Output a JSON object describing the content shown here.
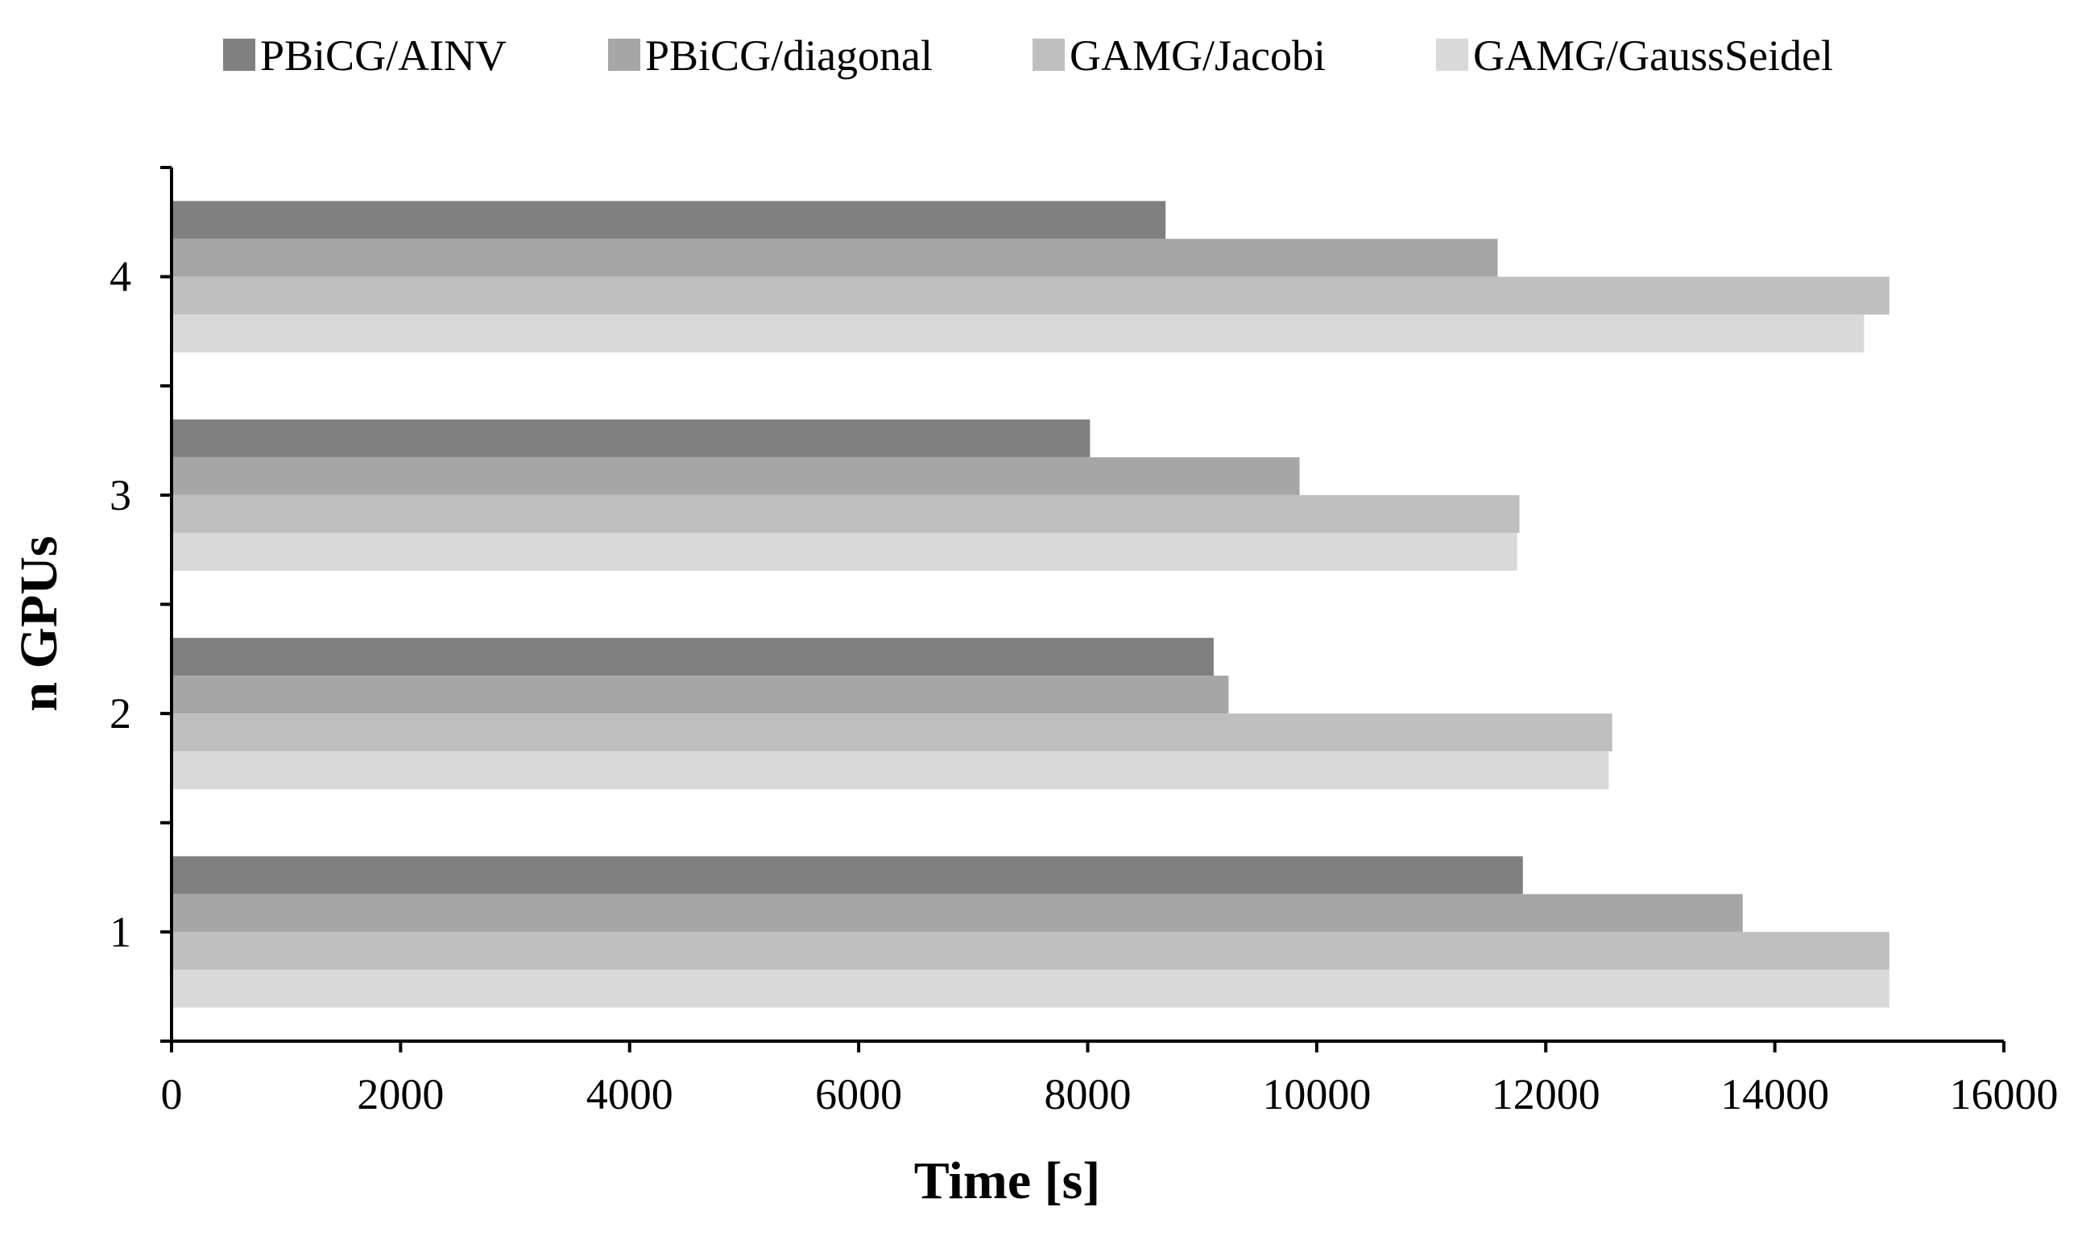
{
  "chart_data": {
    "type": "bar",
    "orientation": "horizontal",
    "title": "",
    "xlabel": "Time [s]",
    "ylabel": "n GPUs",
    "xlim": [
      0,
      16000
    ],
    "x_ticks": [
      "0",
      "2000",
      "4000",
      "6000",
      "8000",
      "10000",
      "12000",
      "14000",
      "16000"
    ],
    "categories": [
      "1",
      "2",
      "3",
      "4"
    ],
    "series": [
      {
        "name": "PBiCG/AINV",
        "color": "#808080",
        "values": [
          11800,
          9100,
          8020,
          8680
        ]
      },
      {
        "name": "PBiCG/diagonal",
        "color": "#a6a6a6",
        "values": [
          13720,
          9230,
          9850,
          11580
        ]
      },
      {
        "name": "GAMG/Jacobi",
        "color": "#bfbfbf",
        "values": [
          15000,
          12580,
          11770,
          15000
        ]
      },
      {
        "name": "GAMG/GaussSeidel",
        "color": "#d9d9d9",
        "values": [
          15000,
          12550,
          11750,
          14780
        ]
      }
    ],
    "legend_position": "top",
    "grid": false
  }
}
